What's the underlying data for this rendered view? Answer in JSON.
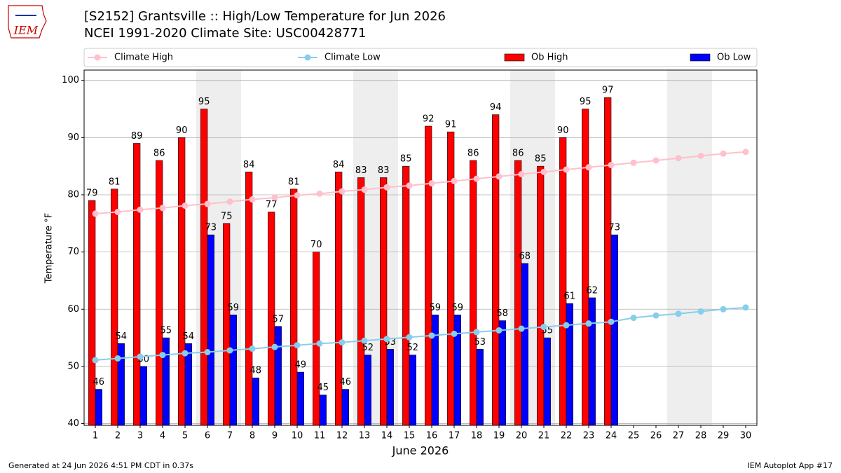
{
  "chart_data": {
    "type": "bar_line",
    "logo": "IEM",
    "title": "[S2152] Grantsville :: High/Low Temperature for Jun 2026",
    "subtitle": "NCEI 1991-2020 Climate Site: USC00428771",
    "ylabel": "Temperature °F",
    "xlabel": "June 2026",
    "footer_left": "Generated at 24 Jun 2026 4:51 PM CDT in 0.37s",
    "footer_right": "IEM Autoplot App #17",
    "legend": "top",
    "grid": true,
    "x": [
      1,
      2,
      3,
      4,
      5,
      6,
      7,
      8,
      9,
      10,
      11,
      12,
      13,
      14,
      15,
      16,
      17,
      18,
      19,
      20,
      21,
      22,
      23,
      24,
      25,
      26,
      27,
      28,
      29,
      30
    ],
    "xlim": [
      0.5,
      30.5
    ],
    "xticks": [
      1,
      2,
      3,
      4,
      5,
      6,
      7,
      8,
      9,
      10,
      11,
      12,
      13,
      14,
      15,
      16,
      17,
      18,
      19,
      20,
      21,
      22,
      23,
      24,
      25,
      26,
      27,
      28,
      29,
      30
    ],
    "ylim": [
      39.7,
      101.8
    ],
    "yticks": [
      40,
      50,
      60,
      70,
      80,
      90,
      100
    ],
    "shaded_days": [
      6,
      7,
      13,
      14,
      20,
      21,
      27,
      28
    ],
    "shade_color": "#eeeeee",
    "series": [
      {
        "name": "Climate High",
        "kind": "line",
        "color": "#ffc0cb",
        "values": [
          76.7,
          77.0,
          77.4,
          77.7,
          78.1,
          78.4,
          78.8,
          79.2,
          79.5,
          79.9,
          80.2,
          80.6,
          80.9,
          81.3,
          81.6,
          82.0,
          82.4,
          82.8,
          83.2,
          83.6,
          84.0,
          84.4,
          84.8,
          85.2,
          85.6,
          86.0,
          86.4,
          86.8,
          87.2,
          87.5
        ]
      },
      {
        "name": "Climate Low",
        "kind": "line",
        "color": "#87ceeb",
        "values": [
          51.1,
          51.4,
          51.7,
          52.0,
          52.3,
          52.5,
          52.8,
          53.1,
          53.4,
          53.7,
          54.0,
          54.2,
          54.5,
          54.8,
          55.1,
          55.4,
          55.7,
          56.0,
          56.3,
          56.6,
          56.9,
          57.2,
          57.5,
          57.8,
          58.5,
          58.9,
          59.2,
          59.6,
          60.0,
          60.3
        ]
      },
      {
        "name": "Ob High",
        "kind": "bar",
        "color": "#ff0000",
        "values": [
          79,
          81,
          89,
          86,
          90,
          95,
          75,
          84,
          77,
          81,
          70,
          84,
          83,
          83,
          85,
          92,
          91,
          86,
          94,
          86,
          85,
          90,
          95,
          97,
          null,
          null,
          null,
          null,
          null,
          null
        ]
      },
      {
        "name": "Ob Low",
        "kind": "bar",
        "color": "#0000ff",
        "values": [
          46,
          54,
          50,
          55,
          54,
          73,
          59,
          48,
          57,
          49,
          45,
          46,
          52,
          53,
          52,
          59,
          59,
          53,
          58,
          68,
          55,
          61,
          62,
          73,
          null,
          null,
          null,
          null,
          null,
          null
        ]
      }
    ]
  }
}
